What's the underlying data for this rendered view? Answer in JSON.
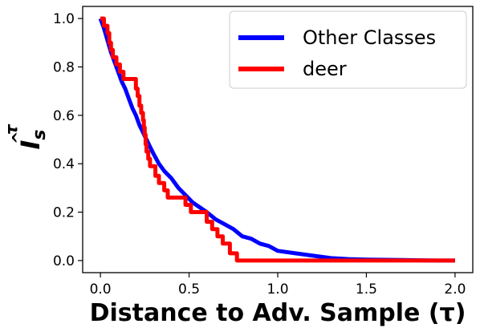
{
  "chart_data": {
    "type": "line",
    "xlabel": "Distance to Adv. Sample (τ)",
    "ylabel_base": "I",
    "ylabel_sub": "s",
    "ylabel_sup": "τ",
    "xlim": [
      -0.1,
      2.1
    ],
    "ylim": [
      -0.05,
      1.05
    ],
    "x_ticks": [
      0.0,
      0.5,
      1.0,
      1.5,
      2.0
    ],
    "x_tick_labels": [
      "0.0",
      "0.5",
      "1.0",
      "1.5",
      "2.0"
    ],
    "y_ticks": [
      0.0,
      0.2,
      0.4,
      0.6,
      0.8,
      1.0
    ],
    "y_tick_labels": [
      "0.0",
      "0.2",
      "0.4",
      "0.6",
      "0.8",
      "1.0"
    ],
    "grid": false,
    "legend_position": "top-right",
    "series": [
      {
        "name": "Other Classes",
        "color": "#0000ff",
        "step": false,
        "points": [
          [
            0.0,
            1.0
          ],
          [
            0.02,
            0.96
          ],
          [
            0.04,
            0.91
          ],
          [
            0.06,
            0.86
          ],
          [
            0.08,
            0.82
          ],
          [
            0.1,
            0.78
          ],
          [
            0.12,
            0.74
          ],
          [
            0.14,
            0.71
          ],
          [
            0.16,
            0.67
          ],
          [
            0.18,
            0.63
          ],
          [
            0.2,
            0.6
          ],
          [
            0.22,
            0.56
          ],
          [
            0.24,
            0.53
          ],
          [
            0.26,
            0.5
          ],
          [
            0.28,
            0.47
          ],
          [
            0.3,
            0.44
          ],
          [
            0.33,
            0.4
          ],
          [
            0.36,
            0.37
          ],
          [
            0.4,
            0.34
          ],
          [
            0.44,
            0.3
          ],
          [
            0.48,
            0.27
          ],
          [
            0.52,
            0.24
          ],
          [
            0.56,
            0.22
          ],
          [
            0.6,
            0.2
          ],
          [
            0.65,
            0.17
          ],
          [
            0.7,
            0.15
          ],
          [
            0.75,
            0.13
          ],
          [
            0.8,
            0.1
          ],
          [
            0.85,
            0.09
          ],
          [
            0.9,
            0.07
          ],
          [
            0.95,
            0.06
          ],
          [
            1.0,
            0.04
          ],
          [
            1.1,
            0.03
          ],
          [
            1.2,
            0.02
          ],
          [
            1.3,
            0.01
          ],
          [
            1.4,
            0.006
          ],
          [
            1.5,
            0.004
          ],
          [
            1.6,
            0.003
          ],
          [
            1.7,
            0.002
          ],
          [
            1.8,
            0.001
          ],
          [
            1.9,
            0.0
          ],
          [
            2.0,
            0.0
          ]
        ]
      },
      {
        "name": "deer",
        "color": "#ff0000",
        "step": true,
        "points": [
          [
            0.0,
            1.0
          ],
          [
            0.02,
            0.97
          ],
          [
            0.04,
            0.94
          ],
          [
            0.05,
            0.9
          ],
          [
            0.06,
            0.87
          ],
          [
            0.07,
            0.84
          ],
          [
            0.09,
            0.81
          ],
          [
            0.11,
            0.78
          ],
          [
            0.13,
            0.75
          ],
          [
            0.2,
            0.71
          ],
          [
            0.21,
            0.68
          ],
          [
            0.22,
            0.64
          ],
          [
            0.23,
            0.61
          ],
          [
            0.24,
            0.58
          ],
          [
            0.245,
            0.55
          ],
          [
            0.25,
            0.52
          ],
          [
            0.255,
            0.48
          ],
          [
            0.26,
            0.45
          ],
          [
            0.27,
            0.42
          ],
          [
            0.28,
            0.39
          ],
          [
            0.31,
            0.35
          ],
          [
            0.33,
            0.32
          ],
          [
            0.36,
            0.29
          ],
          [
            0.38,
            0.26
          ],
          [
            0.48,
            0.23
          ],
          [
            0.51,
            0.2
          ],
          [
            0.6,
            0.16
          ],
          [
            0.63,
            0.13
          ],
          [
            0.66,
            0.1
          ],
          [
            0.69,
            0.07
          ],
          [
            0.73,
            0.03
          ],
          [
            0.77,
            0.0
          ],
          [
            2.0,
            0.0
          ]
        ]
      }
    ]
  }
}
